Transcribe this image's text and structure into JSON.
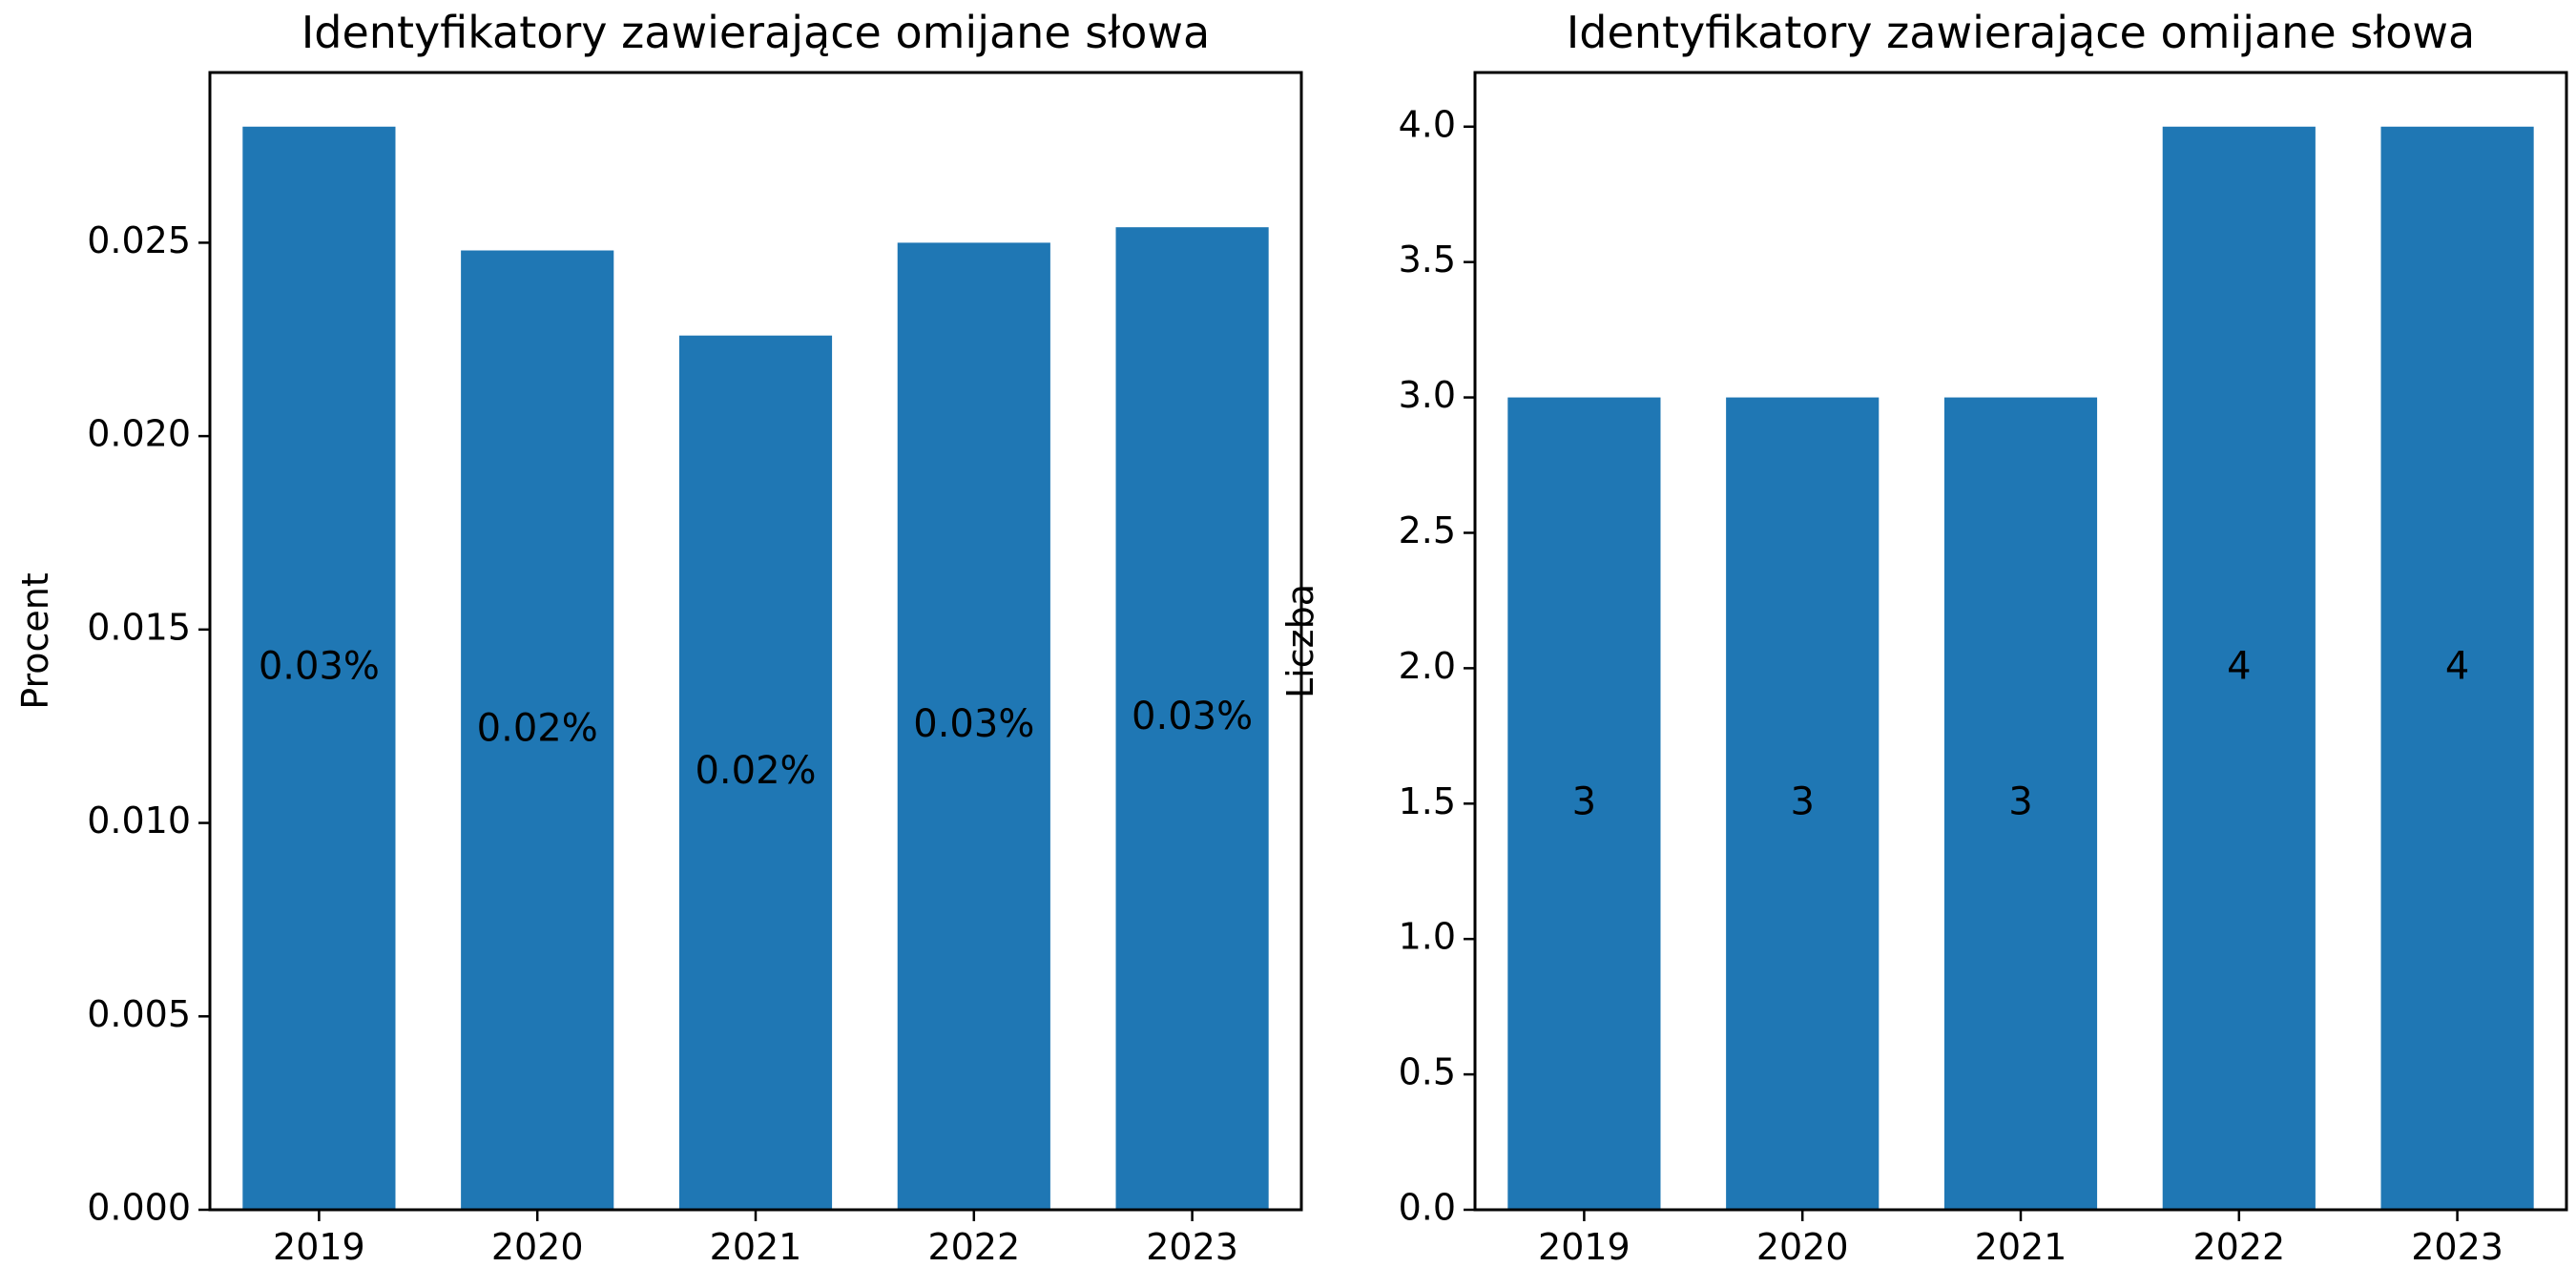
{
  "chart_data": [
    {
      "type": "bar",
      "title": "Identyfikatory zawierające omijane słowa",
      "xlabel": "",
      "ylabel": "Procent",
      "categories": [
        "2019",
        "2020",
        "2021",
        "2022",
        "2023"
      ],
      "values": [
        0.028,
        0.0248,
        0.0226,
        0.025,
        0.0254
      ],
      "bar_labels": [
        "0.03%",
        "0.02%",
        "0.02%",
        "0.03%",
        "0.03%"
      ],
      "ylim": [
        0,
        0.0294
      ],
      "yticks": [
        0.0,
        0.005,
        0.01,
        0.015,
        0.02,
        0.025
      ],
      "ytick_labels": [
        "0.000",
        "0.005",
        "0.010",
        "0.015",
        "0.020",
        "0.025"
      ],
      "color": "#1f77b4",
      "grid": false,
      "legend": "none"
    },
    {
      "type": "bar",
      "title": "Identyfikatory zawierające omijane słowa",
      "xlabel": "",
      "ylabel": "Liczba",
      "categories": [
        "2019",
        "2020",
        "2021",
        "2022",
        "2023"
      ],
      "values": [
        3,
        3,
        3,
        4,
        4
      ],
      "bar_labels": [
        "3",
        "3",
        "3",
        "4",
        "4"
      ],
      "ylim": [
        0,
        4.2
      ],
      "yticks": [
        0.0,
        0.5,
        1.0,
        1.5,
        2.0,
        2.5,
        3.0,
        3.5,
        4.0
      ],
      "ytick_labels": [
        "0.0",
        "0.5",
        "1.0",
        "1.5",
        "2.0",
        "2.5",
        "3.0",
        "3.5",
        "4.0"
      ],
      "color": "#1f77b4",
      "grid": false,
      "legend": "none"
    }
  ]
}
